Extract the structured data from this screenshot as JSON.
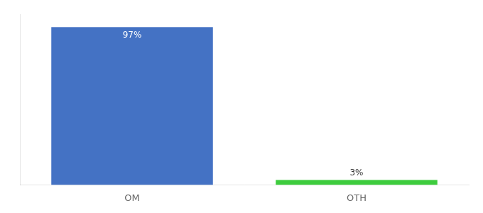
{
  "chart_data": {
    "type": "bar",
    "categories": [
      "OM",
      "OTH"
    ],
    "values": [
      97,
      3
    ],
    "value_labels": [
      "97%",
      "3%"
    ],
    "colors": [
      "#4472c4",
      "#3dcc3d"
    ],
    "ylim": [
      0,
      105
    ],
    "data_labels": true,
    "tick_labels": "x",
    "grid": false
  }
}
